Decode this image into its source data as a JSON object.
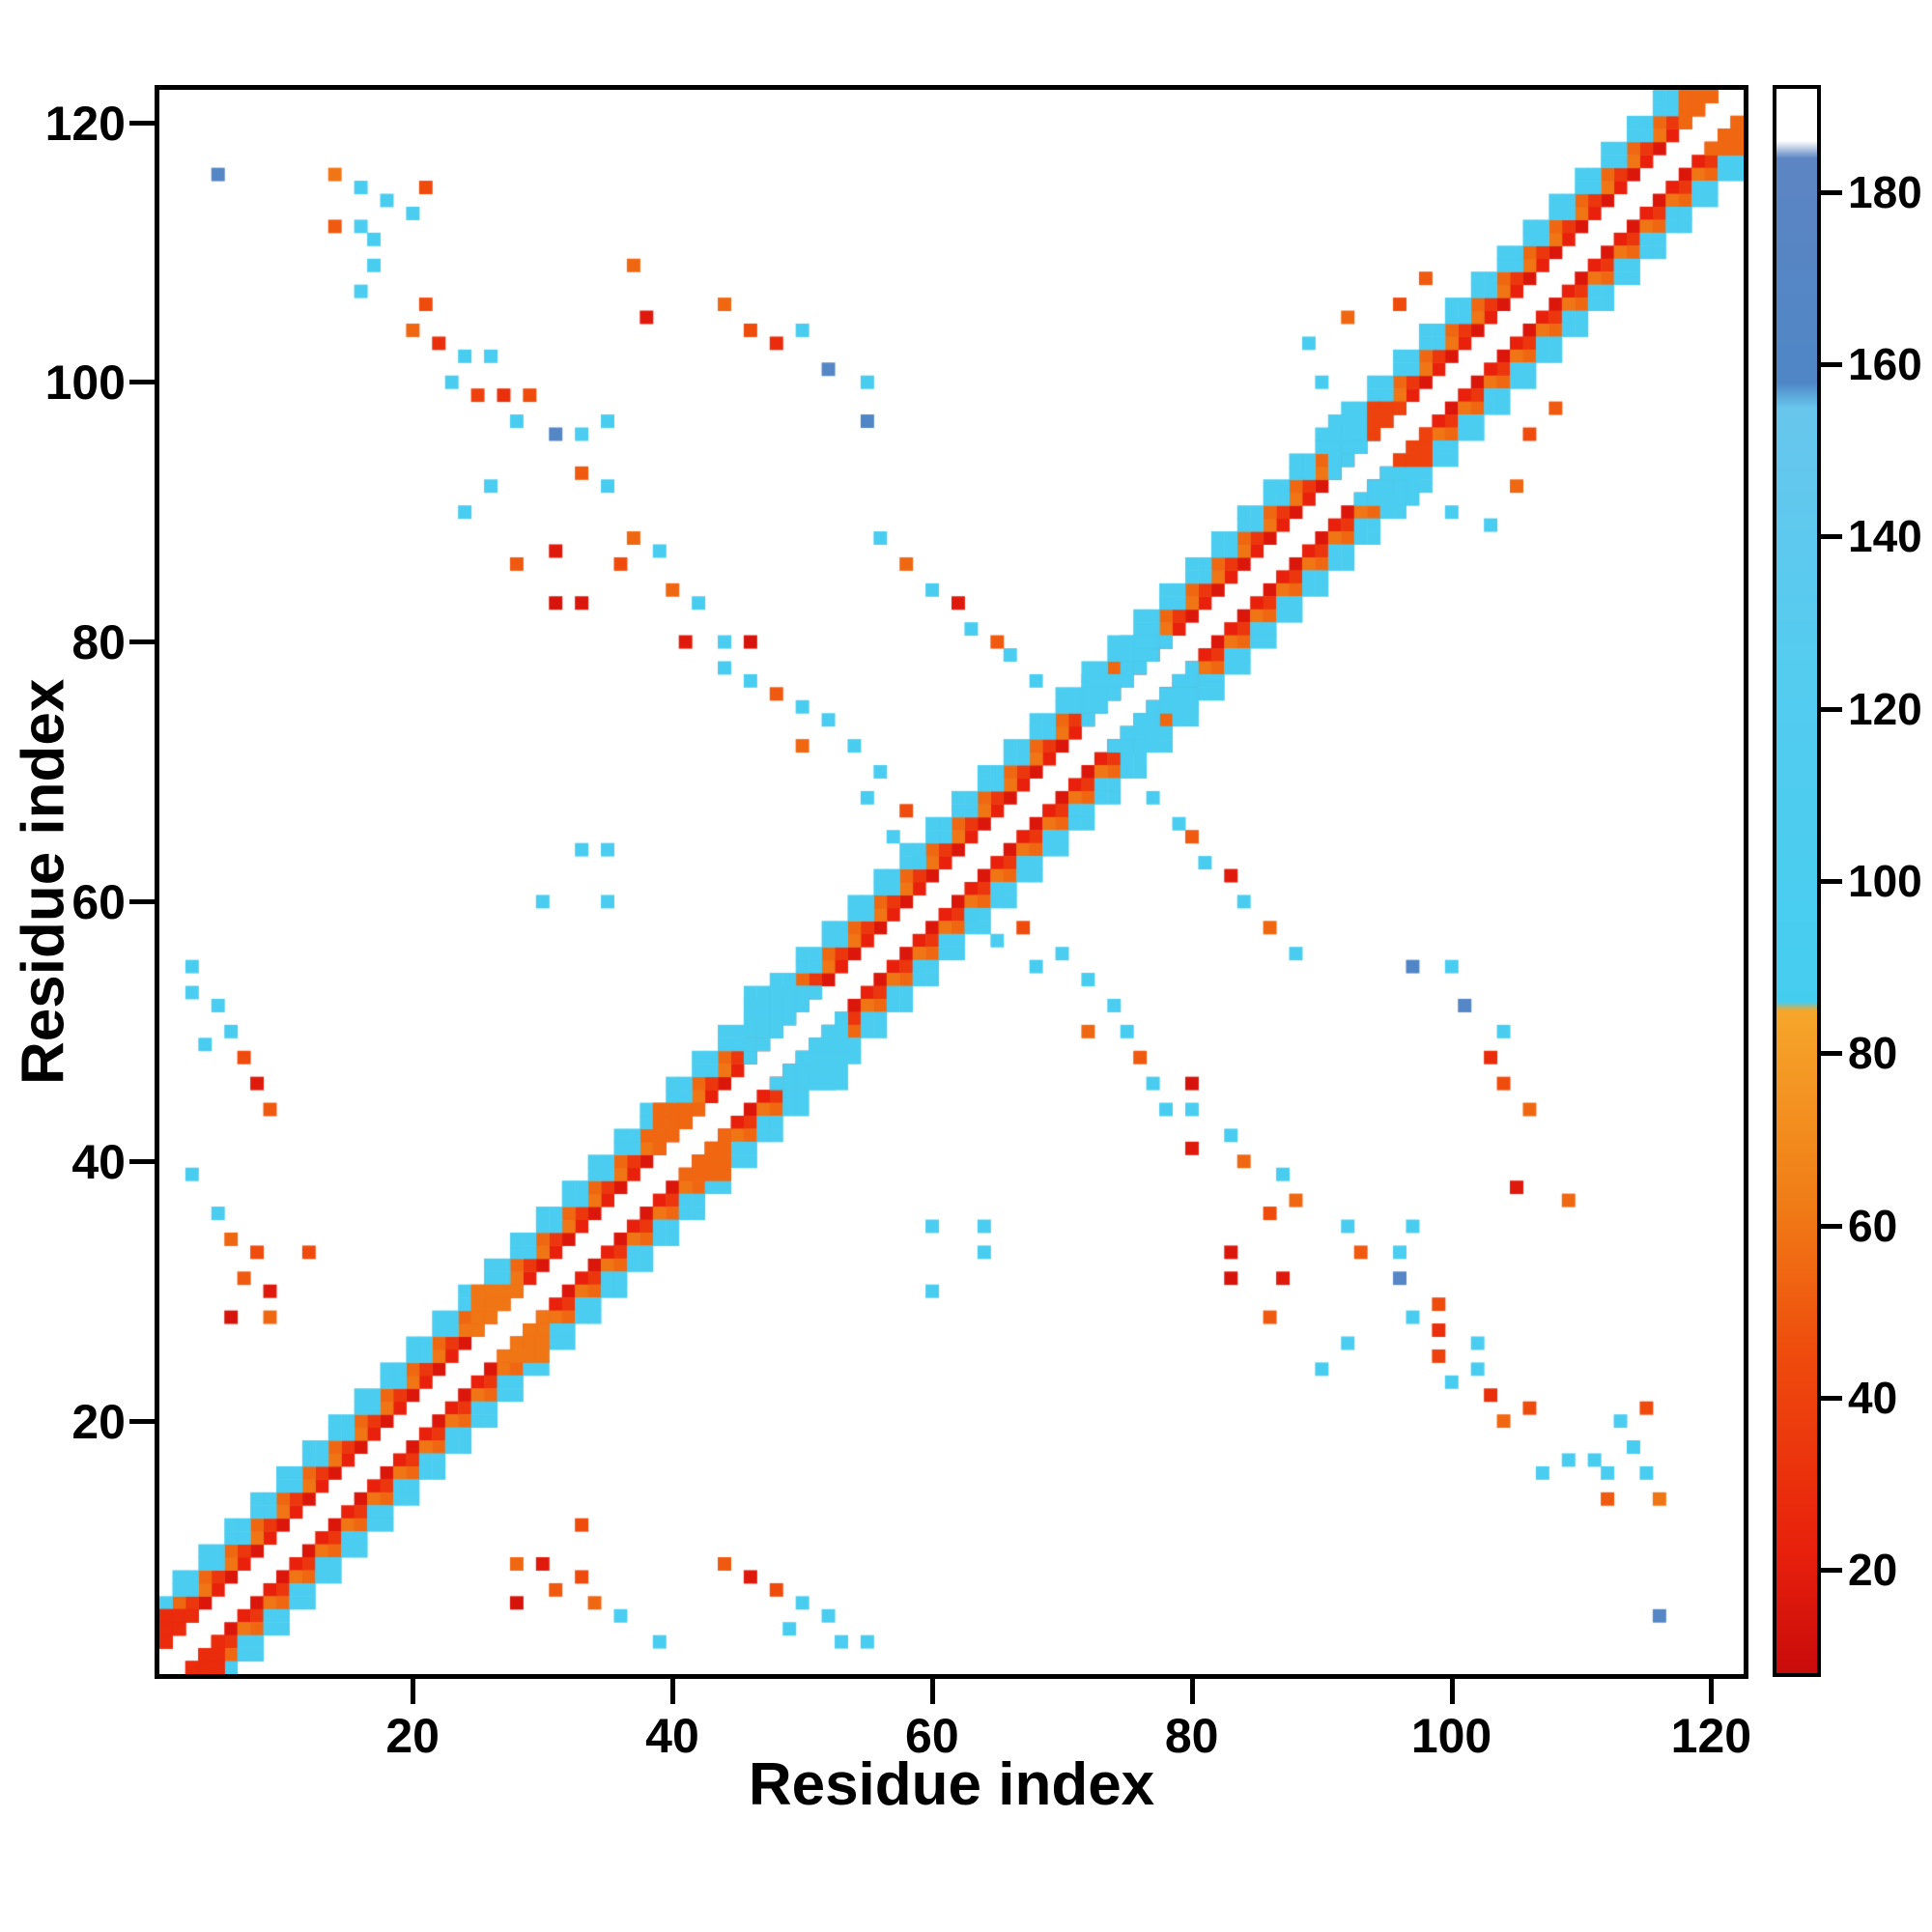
{
  "figure": {
    "background": "#ffffff"
  },
  "chart_data": {
    "type": "heatmap",
    "title": "",
    "xlabel": "Residue index",
    "ylabel": "Residue index",
    "x_range": [
      1,
      122
    ],
    "y_range": [
      1,
      122
    ],
    "x_ticks": [
      20,
      40,
      60,
      80,
      100,
      120
    ],
    "y_ticks": [
      20,
      40,
      60,
      80,
      100,
      120
    ],
    "grid": false,
    "legend": "none",
    "background_value_color": "#ffffff",
    "colorbar": {
      "position": "right",
      "vmin": 8,
      "vmax": 192,
      "ticks": [
        20,
        40,
        60,
        80,
        100,
        120,
        140,
        160,
        180
      ],
      "stops": [
        [
          8,
          "#c90b0b"
        ],
        [
          22,
          "#e8200c"
        ],
        [
          45,
          "#ef4b0d"
        ],
        [
          62,
          "#f07b16"
        ],
        [
          85,
          "#f6a62b"
        ],
        [
          86,
          "#45cdf0"
        ],
        [
          125,
          "#54ccf0"
        ],
        [
          155,
          "#68c6ec"
        ],
        [
          158,
          "#4f86c6"
        ],
        [
          184,
          "#5d85c3"
        ],
        [
          186,
          "#ffffff"
        ],
        [
          192,
          "#ffffff"
        ]
      ]
    },
    "symmetric": true,
    "n_residues": 122,
    "diagonal_bands": [
      {
        "offset": 2,
        "phase": 0,
        "value": 16
      },
      {
        "offset": 2,
        "phase": 1,
        "value": 22
      },
      {
        "offset": 3,
        "phase": 0,
        "value": 60
      },
      {
        "offset": 3,
        "phase": 1,
        "value": 34
      },
      {
        "offset": 4,
        "phase": 0,
        "value": 55
      },
      {
        "offset": 4,
        "phase": 1,
        "value": 98
      },
      {
        "offset": 5,
        "phase": 0,
        "value": 100
      },
      {
        "offset": 5,
        "phase": 1,
        "value": 100
      },
      {
        "offset": 6,
        "phase": 0,
        "value": 102
      }
    ],
    "patches": [
      {
        "x0": 46,
        "y0": 48,
        "w": 8,
        "h": 6,
        "value": 102
      },
      {
        "x0": 72,
        "y0": 73,
        "w": 6,
        "h": 5,
        "value": 100
      },
      {
        "x0": 75,
        "y0": 78,
        "w": 4,
        "h": 3,
        "value": 98
      },
      {
        "x0": 91,
        "y0": 93,
        "w": 6,
        "h": 5,
        "value": 100
      },
      {
        "x0": 94,
        "y0": 96,
        "w": 4,
        "h": 3,
        "value": 40
      },
      {
        "x0": 25,
        "y0": 27,
        "w": 5,
        "h": 4,
        "value": 60
      },
      {
        "x0": 39,
        "y0": 41,
        "w": 5,
        "h": 4,
        "value": 55
      },
      {
        "x0": 1,
        "y0": 1,
        "w": 5,
        "h": 5,
        "value": 28
      },
      {
        "x0": 118,
        "y0": 118,
        "w": 5,
        "h": 5,
        "value": 55
      }
    ],
    "cells": [
      [
        5,
        116,
        170
      ],
      [
        14,
        116,
        60
      ],
      [
        16,
        115,
        95
      ],
      [
        21,
        115,
        45
      ],
      [
        18,
        114,
        95
      ],
      [
        20,
        113,
        100
      ],
      [
        14,
        112,
        50
      ],
      [
        16,
        112,
        100
      ],
      [
        17,
        111,
        95
      ],
      [
        37,
        109,
        55
      ],
      [
        17,
        109,
        95
      ],
      [
        16,
        107,
        100
      ],
      [
        21,
        106,
        45
      ],
      [
        44,
        106,
        55
      ],
      [
        38,
        105,
        18
      ],
      [
        20,
        104,
        55
      ],
      [
        46,
        104,
        45
      ],
      [
        50,
        104,
        95
      ],
      [
        22,
        103,
        30
      ],
      [
        48,
        103,
        28
      ],
      [
        89,
        103,
        95
      ],
      [
        24,
        102,
        95
      ],
      [
        26,
        102,
        100
      ],
      [
        52,
        101,
        170
      ],
      [
        23,
        100,
        95
      ],
      [
        90,
        100,
        95
      ],
      [
        25,
        99,
        40
      ],
      [
        27,
        99,
        30
      ],
      [
        29,
        99,
        45
      ],
      [
        55,
        100,
        95
      ],
      [
        55,
        97,
        160
      ],
      [
        28,
        97,
        95
      ],
      [
        31,
        96,
        170
      ],
      [
        33,
        96,
        100
      ],
      [
        35,
        97,
        95
      ],
      [
        33,
        93,
        50
      ],
      [
        35,
        92,
        95
      ],
      [
        26,
        92,
        100
      ],
      [
        24,
        90,
        95
      ],
      [
        37,
        88,
        55
      ],
      [
        56,
        88,
        95
      ],
      [
        39,
        87,
        95
      ],
      [
        31,
        87,
        18
      ],
      [
        36,
        86,
        45
      ],
      [
        28,
        86,
        50
      ],
      [
        58,
        86,
        55
      ],
      [
        31,
        83,
        14
      ],
      [
        33,
        83,
        16
      ],
      [
        42,
        83,
        95
      ],
      [
        40,
        84,
        55
      ],
      [
        60,
        84,
        95
      ],
      [
        62,
        83,
        18
      ],
      [
        41,
        80,
        18
      ],
      [
        44,
        80,
        100
      ],
      [
        46,
        80,
        14
      ],
      [
        63,
        81,
        95
      ],
      [
        65,
        80,
        50
      ],
      [
        44,
        78,
        95
      ],
      [
        46,
        77,
        95
      ],
      [
        66,
        79,
        100
      ],
      [
        48,
        76,
        50
      ],
      [
        68,
        77,
        95
      ],
      [
        50,
        75,
        95
      ],
      [
        52,
        74,
        100
      ],
      [
        50,
        72,
        55
      ],
      [
        54,
        72,
        95
      ],
      [
        56,
        70,
        100
      ],
      [
        55,
        68,
        95
      ],
      [
        58,
        67,
        45
      ],
      [
        57,
        65,
        100
      ],
      [
        59,
        63,
        95
      ],
      [
        33,
        64,
        95
      ],
      [
        35,
        64,
        100
      ],
      [
        30,
        60,
        95
      ],
      [
        35,
        60,
        100
      ],
      [
        3,
        39,
        95
      ],
      [
        5,
        36,
        100
      ],
      [
        6,
        34,
        55
      ],
      [
        12,
        33,
        45
      ],
      [
        8,
        33,
        45
      ],
      [
        7,
        31,
        50
      ],
      [
        9,
        30,
        18
      ],
      [
        6,
        28,
        14
      ],
      [
        9,
        28,
        55
      ],
      [
        9,
        44,
        50
      ],
      [
        8,
        46,
        18
      ],
      [
        7,
        48,
        45
      ],
      [
        6,
        50,
        95
      ],
      [
        5,
        52,
        100
      ],
      [
        4,
        49,
        95
      ],
      [
        3,
        53,
        100
      ],
      [
        3,
        55,
        95
      ],
      [
        92,
        105,
        55
      ],
      [
        96,
        106,
        45
      ],
      [
        98,
        108,
        50
      ]
    ]
  }
}
